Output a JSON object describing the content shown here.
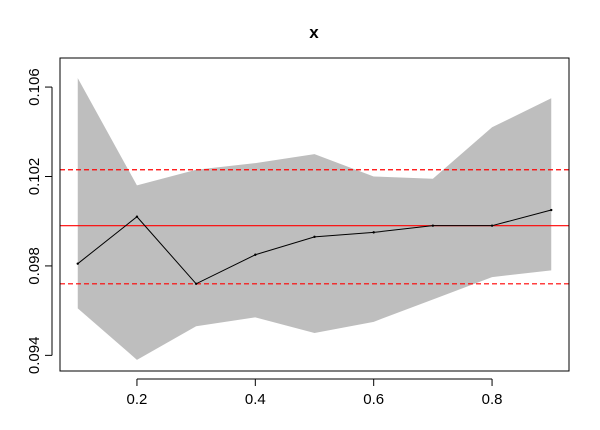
{
  "chart_data": {
    "type": "line",
    "title": "x",
    "xlabel": "",
    "ylabel": "",
    "xlim": [
      0.07,
      0.93
    ],
    "ylim": [
      0.0933,
      0.1073
    ],
    "x_ticks": [
      0.2,
      0.4,
      0.6,
      0.8
    ],
    "x_tick_labels": [
      "0.2",
      "0.4",
      "0.6",
      "0.8"
    ],
    "y_ticks": [
      0.094,
      0.098,
      0.102,
      0.106
    ],
    "y_tick_labels": [
      "0.094",
      "0.098",
      "0.102",
      "0.106"
    ],
    "x": [
      0.1,
      0.2,
      0.3,
      0.4,
      0.5,
      0.6,
      0.7,
      0.8,
      0.9
    ],
    "series": [
      {
        "values": [
          0.0981,
          0.1002,
          0.0972,
          0.0985,
          0.0993,
          0.0995,
          0.0998,
          0.0998,
          0.1005
        ],
        "color": "#000000"
      }
    ],
    "band": {
      "upper": [
        0.1064,
        0.1016,
        0.1023,
        0.1026,
        0.103,
        0.102,
        0.1019,
        0.1042,
        0.1055
      ],
      "lower": [
        0.0961,
        0.0938,
        0.0953,
        0.0957,
        0.095,
        0.0955,
        0.0965,
        0.0975,
        0.0978
      ],
      "color": "#bebebe"
    },
    "reference_lines": [
      {
        "y": 0.0998,
        "color": "#ff0000",
        "style": "solid"
      },
      {
        "y": 0.1023,
        "color": "#ff0000",
        "style": "dashed"
      },
      {
        "y": 0.0972,
        "color": "#ff0000",
        "style": "dashed"
      }
    ],
    "grid": false,
    "legend": "none"
  }
}
